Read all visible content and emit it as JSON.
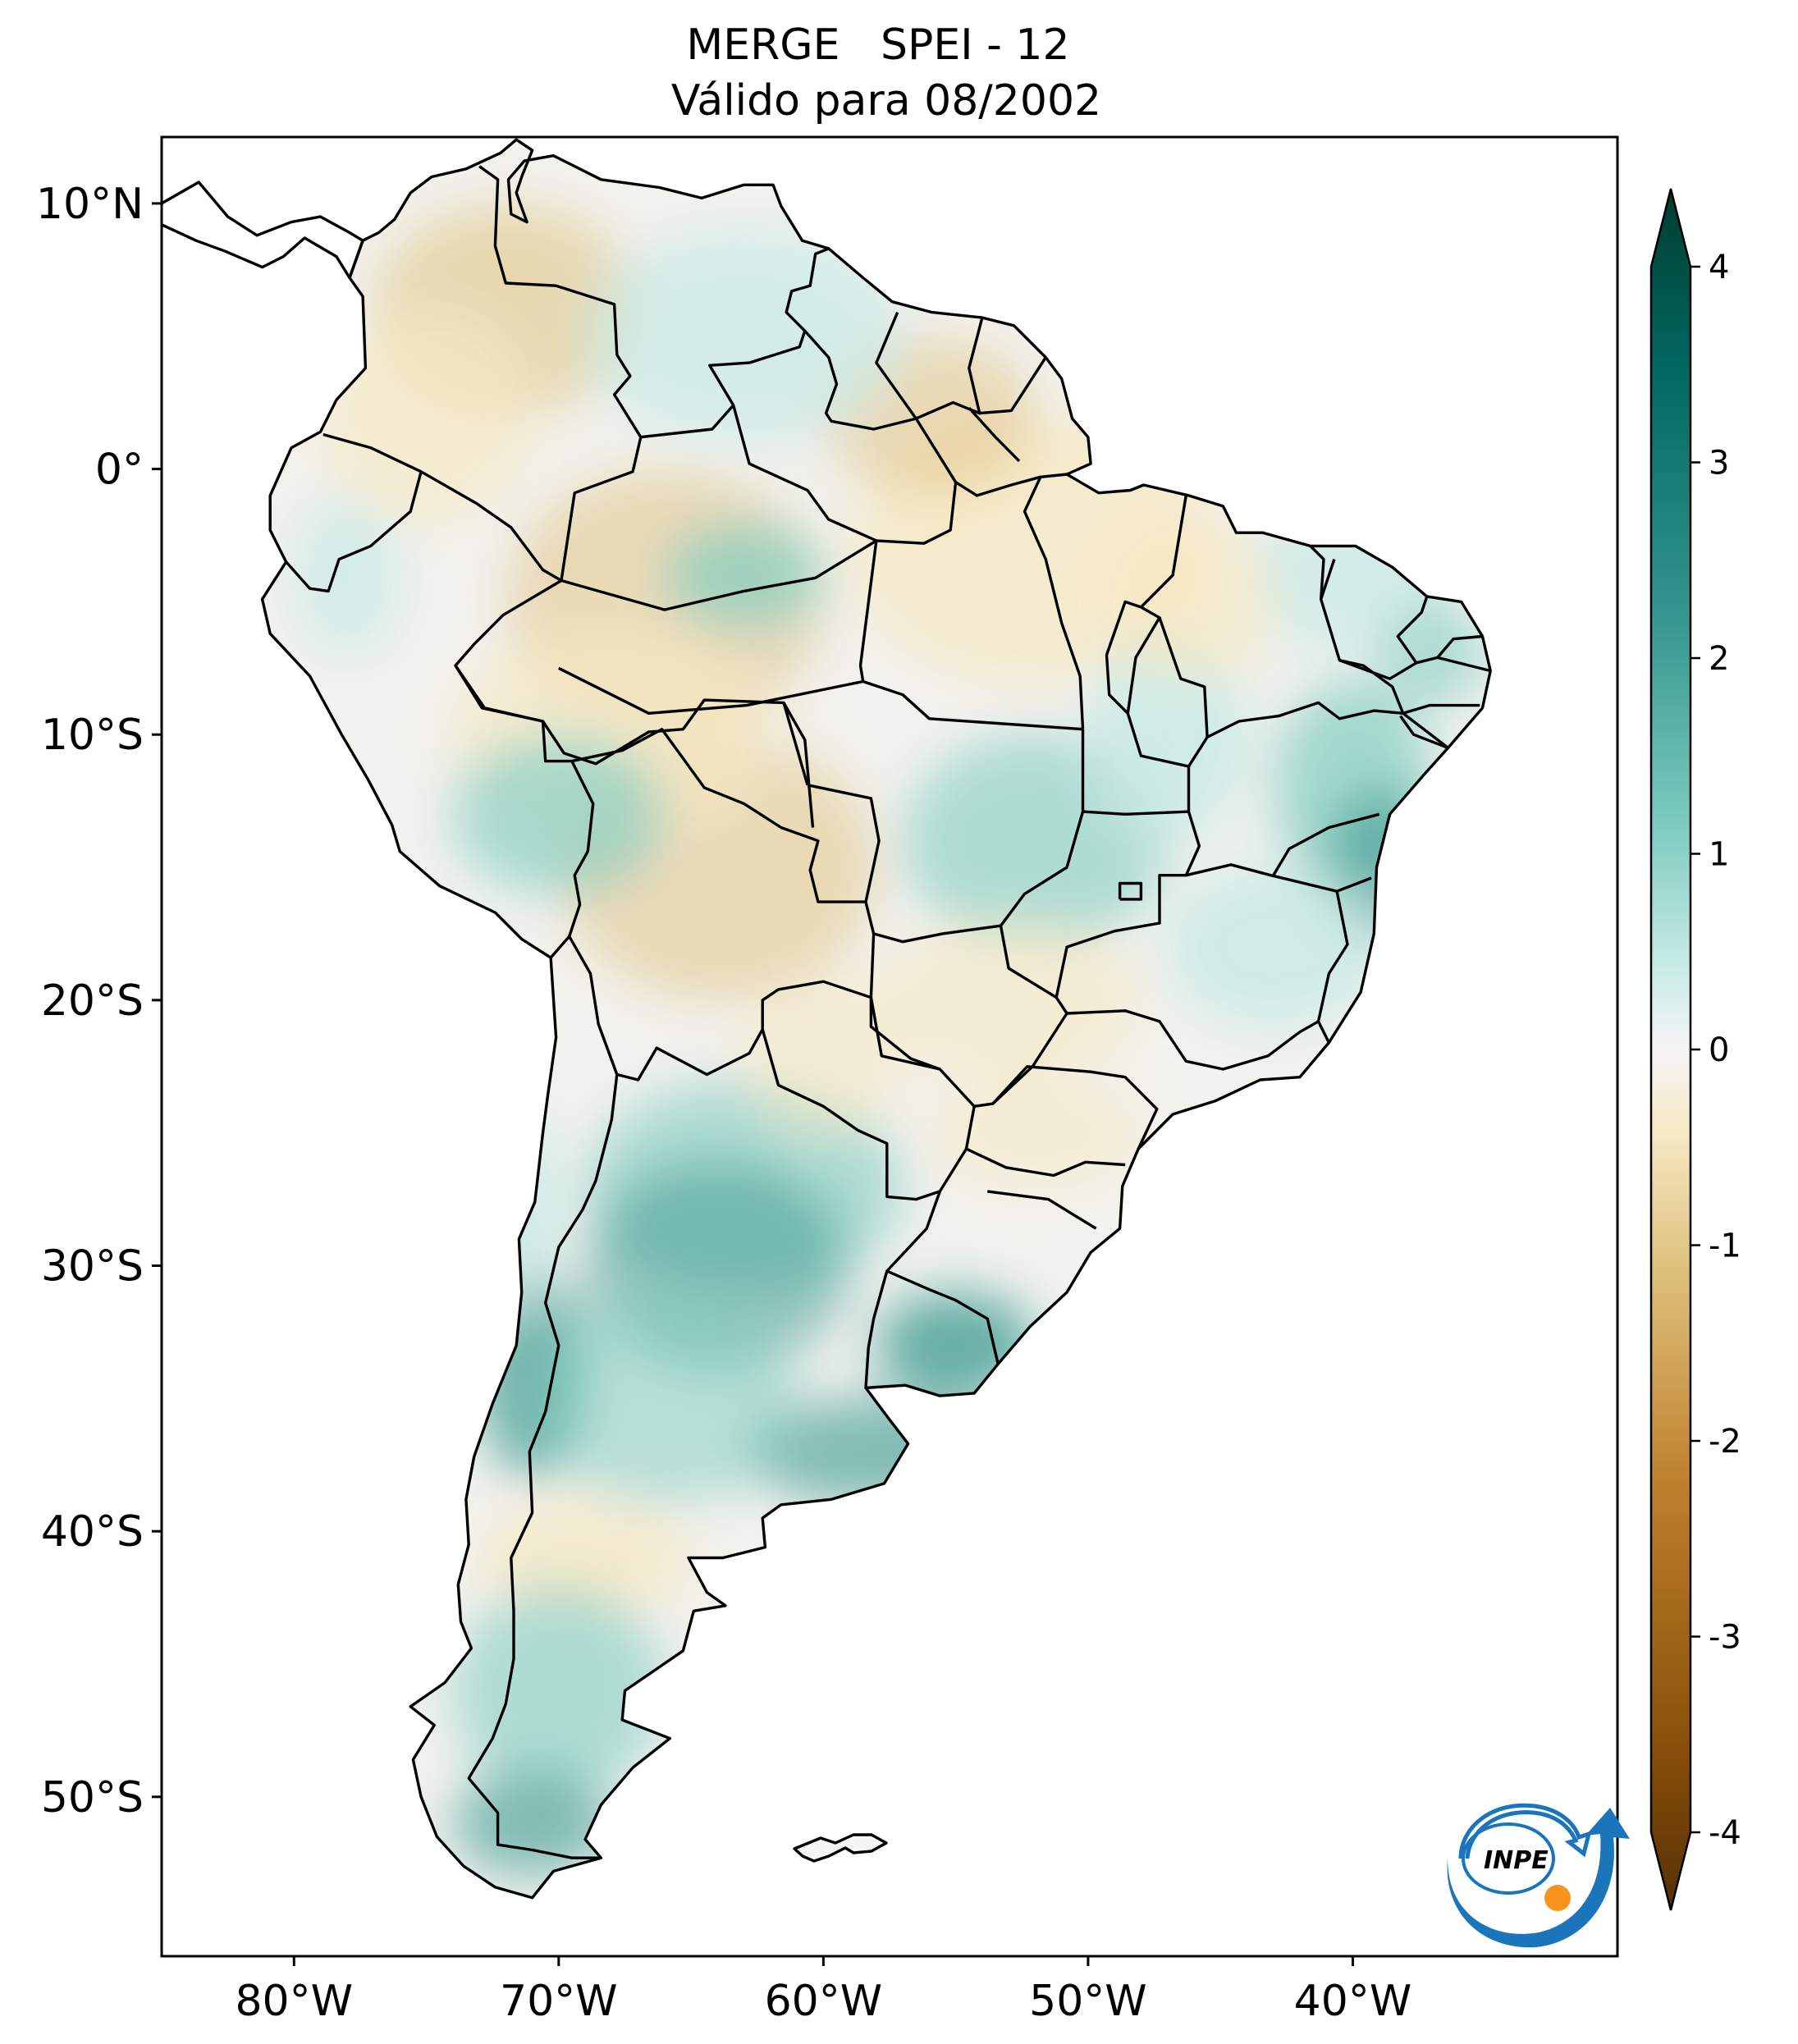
{
  "title": {
    "line1": "MERGE   SPEI - 12",
    "line2": "Válido para 08/2002"
  },
  "map": {
    "lon_range": [
      -85,
      -30
    ],
    "lat_range": [
      -56,
      12.5
    ],
    "lon_ticks": [
      {
        "value": -80,
        "label": "80°W"
      },
      {
        "value": -70,
        "label": "70°W"
      },
      {
        "value": -60,
        "label": "60°W"
      },
      {
        "value": -50,
        "label": "50°W"
      },
      {
        "value": -40,
        "label": "40°W"
      }
    ],
    "lat_ticks": [
      {
        "value": 10,
        "label": "10°N"
      },
      {
        "value": 0,
        "label": "0°"
      },
      {
        "value": -10,
        "label": "10°S"
      },
      {
        "value": -20,
        "label": "20°S"
      },
      {
        "value": -30,
        "label": "30°S"
      },
      {
        "value": -40,
        "label": "40°S"
      },
      {
        "value": -50,
        "label": "50°S"
      }
    ]
  },
  "colorbar": {
    "range": [
      -4,
      4
    ],
    "extend": "both",
    "colormap": "BrBG",
    "ticks": [
      {
        "value": 4,
        "label": "4"
      },
      {
        "value": 3,
        "label": "3"
      },
      {
        "value": 2,
        "label": "2"
      },
      {
        "value": 1,
        "label": "1"
      },
      {
        "value": 0,
        "label": "0"
      },
      {
        "value": -1,
        "label": "-1"
      },
      {
        "value": -2,
        "label": "-2"
      },
      {
        "value": -3,
        "label": "-3"
      },
      {
        "value": -4,
        "label": "-4"
      }
    ],
    "colors": {
      "dry_extreme": "#543005",
      "dry_strong": "#8c510a",
      "dry_moderate": "#bf812d",
      "dry_mild": "#dfc27d",
      "dry_slight": "#f6e8c3",
      "neutral": "#f5f5f5",
      "wet_slight": "#c7eae5",
      "wet_mild": "#80cdc1",
      "wet_moderate": "#35978f",
      "wet_strong": "#01665e",
      "wet_extreme": "#003c30"
    }
  },
  "logo": {
    "text": "INPE",
    "arrow_color": "#1a75bb",
    "dot_color": "#f7941d"
  }
}
